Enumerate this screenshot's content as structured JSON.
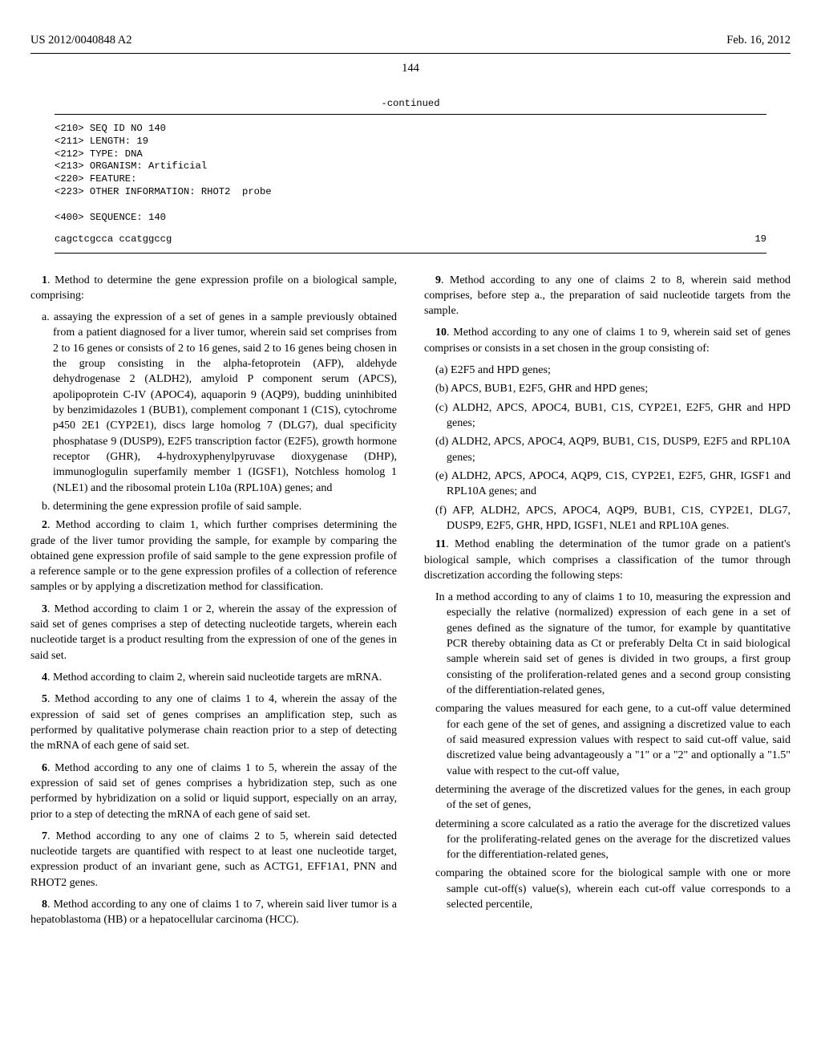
{
  "header": {
    "pub_no": "US 2012/0040848 A2",
    "date": "Feb. 16, 2012",
    "page": "144"
  },
  "seq": {
    "continued_label": "-continued",
    "lines": [
      "<210> SEQ ID NO 140",
      "<211> LENGTH: 19",
      "<212> TYPE: DNA",
      "<213> ORGANISM: Artificial",
      "<220> FEATURE:",
      "<223> OTHER INFORMATION: RHOT2  probe",
      "",
      "<400> SEQUENCE: 140"
    ],
    "sequence_text": "cagctcgcca ccatggccg",
    "sequence_len": "19"
  },
  "claims_left": [
    {
      "num": "1",
      "text": ". Method to determine the gene expression profile on a biological sample, comprising:",
      "subs": [
        "a. assaying the expression of a set of genes in a sample previously obtained from a patient diagnosed for a liver tumor, wherein said set comprises from 2 to 16 genes or consists of 2 to 16 genes, said 2 to 16 genes being chosen in the group consisting in the alpha-fetoprotein (AFP), aldehyde dehydrogenase 2 (ALDH2), amyloid P component serum (APCS), apolipoprotein C-IV (APOC4), aquaporin 9 (AQP9), budding uninhibited by benzimidazoles 1 (BUB1), complement componant 1 (C1S), cytochrome p450 2E1 (CYP2E1), discs large homolog 7 (DLG7), dual specificity phosphatase 9 (DUSP9), E2F5 transcription factor (E2F5), growth hormone receptor (GHR), 4-hydroxyphenylpyruvase dioxygenase (DHP), immunoglogulin superfamily member 1 (IGSF1), Notchless homolog 1 (NLE1) and the ribosomal protein L10a (RPL10A) genes; and",
        "b. determining the gene expression profile of said sample."
      ]
    },
    {
      "num": "2",
      "text": ". Method according to claim 1, which further comprises determining the grade of the liver tumor providing the sample, for example by comparing the obtained gene expression profile of said sample to the gene expression profile of a reference sample or to the gene expression profiles of a collection of reference samples or by applying a discretization method for classification."
    },
    {
      "num": "3",
      "text": ". Method according to claim 1 or 2, wherein the assay of the expression of said set of genes comprises a step of detecting nucleotide targets, wherein each nucleotide target is a product resulting from the expression of one of the genes in said set."
    },
    {
      "num": "4",
      "text": ". Method according to claim 2, wherein said nucleotide targets are mRNA."
    },
    {
      "num": "5",
      "text": ". Method according to any one of claims 1 to 4, wherein the assay of the expression of said set of genes comprises an amplification step, such as performed by qualitative polymerase chain reaction prior to a step of detecting the mRNA of each gene of said set."
    },
    {
      "num": "6",
      "text": ". Method according to any one of claims 1 to 5, wherein the assay of the expression of said set of genes comprises a hybridization step, such as one performed by hybridization on a solid or liquid support, especially on an array, prior to a step of detecting the mRNA of each gene of said set."
    },
    {
      "num": "7",
      "text": ". Method according to any one of claims 2 to 5, wherein said detected nucleotide targets are quantified with respect to at least one nucleotide target, expression product of an invariant gene, such as ACTG1, EFF1A1, PNN and RHOT2 genes."
    },
    {
      "num": "8",
      "text": ". Method according to any one of claims 1 to 7, wherein said liver tumor is a hepatoblastoma (HB) or a hepatocellular carcinoma (HCC)."
    }
  ],
  "claims_right": [
    {
      "num": "9",
      "text": ". Method according to any one of claims 2 to 8, wherein said method comprises, before step a., the preparation of said nucleotide targets from the sample."
    },
    {
      "num": "10",
      "text": ". Method according to any one of claims 1 to 9, wherein said set of genes comprises or consists in a set chosen in the group consisting of:",
      "subs": [
        "(a) E2F5 and HPD genes;",
        "(b) APCS, BUB1, E2F5, GHR and HPD genes;",
        "(c) ALDH2, APCS, APOC4, BUB1, C1S, CYP2E1, E2F5, GHR and HPD genes;",
        "(d) ALDH2, APCS, APOC4, AQP9, BUB1, C1S, DUSP9, E2F5 and RPL10A genes;",
        "(e) ALDH2, APCS, APOC4, AQP9, C1S, CYP2E1, E2F5, GHR, IGSF1 and RPL10A genes; and",
        "(f) AFP, ALDH2, APCS, APOC4, AQP9, BUB1, C1S, CYP2E1, DLG7, DUSP9, E2F5, GHR, HPD, IGSF1, NLE1 and RPL10A genes."
      ]
    },
    {
      "num": "11",
      "text": ". Method enabling the determination of the tumor grade on a patient's biological sample, which comprises a classification of the tumor through discretization according the following steps:",
      "subs": [
        "In a method according to any of claims 1 to 10, measuring the expression and especially the relative (normalized) expression of each gene in a set of genes defined as the signature of the tumor, for example by quantitative PCR thereby obtaining data as Ct or preferably Delta Ct in said biological sample wherein said set of genes is divided in two groups, a first group consisting of the proliferation-related genes and a second group consisting of the differentiation-related genes,",
        "comparing the values measured for each gene, to a cut-off value determined for each gene of the set of genes, and assigning a discretized value to each of said measured expression values with respect to said cut-off value, said discretized value being advantageously a \"1\" or a \"2\" and optionally a \"1.5\" value with respect to the cut-off value,",
        "determining the average of the discretized values for the genes, in each group of the set of genes,",
        "determining a score calculated as a ratio the average for the discretized values for the proliferating-related genes on the average for the discretized values for the differentiation-related genes,",
        "comparing the obtained score for the biological sample with one or more sample cut-off(s) value(s), wherein each cut-off value corresponds to a selected percentile,"
      ]
    }
  ]
}
